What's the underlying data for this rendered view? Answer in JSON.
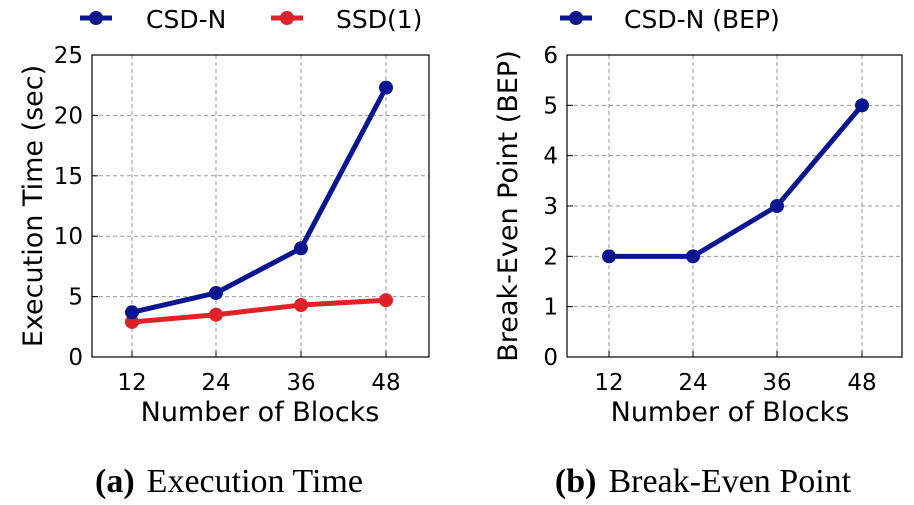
{
  "colors": {
    "csd": "#0a1690",
    "ssd": "#e02228",
    "grid": "#999999",
    "axis": "#000000"
  },
  "chart_data": [
    {
      "type": "line",
      "caption_letter": "(a)",
      "caption_text": "Execution Time",
      "xlabel": "Number of Blocks",
      "ylabel": "Execution Time (sec)",
      "categories": [
        "12",
        "24",
        "36",
        "48"
      ],
      "ylim": [
        0,
        25
      ],
      "yticks": [
        0,
        5,
        10,
        15,
        20,
        25
      ],
      "grid": true,
      "legend": "top",
      "series": [
        {
          "name": "CSD-N",
          "color": "#0a1690",
          "values": [
            3.7,
            5.3,
            9.0,
            22.3
          ]
        },
        {
          "name": "SSD(1)",
          "color": "#e02228",
          "values": [
            2.9,
            3.5,
            4.3,
            4.7
          ]
        }
      ]
    },
    {
      "type": "line",
      "caption_letter": "(b)",
      "caption_text": "Break-Even Point",
      "xlabel": "Number of Blocks",
      "ylabel": "Break-Even Point (BEP)",
      "categories": [
        "12",
        "24",
        "36",
        "48"
      ],
      "ylim": [
        0,
        6
      ],
      "yticks": [
        0,
        1,
        2,
        3,
        4,
        5,
        6
      ],
      "grid": true,
      "legend": "top",
      "series": [
        {
          "name": "CSD-N (BEP)",
          "color": "#0a1690",
          "values": [
            2,
            2,
            3,
            5
          ]
        }
      ]
    }
  ]
}
